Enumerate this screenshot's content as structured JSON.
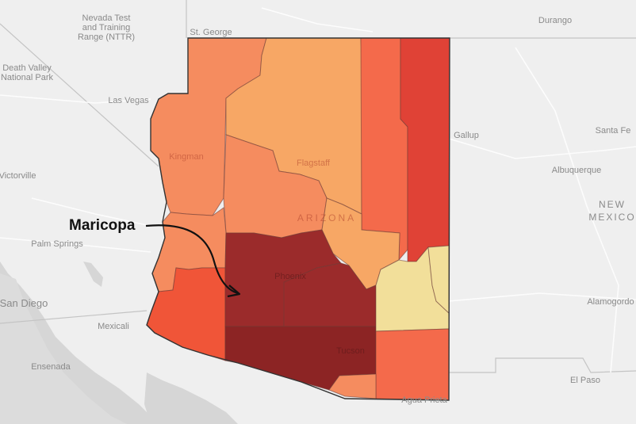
{
  "colors": {
    "water": "#d6d6d6",
    "land": "#efefef",
    "road": "#ffffff",
    "border": "#c9c9c9",
    "scale": [
      "#f2df9a",
      "#f7a765",
      "#f58c5f",
      "#f46a4b",
      "#f05538",
      "#e04236",
      "#9b2b2b",
      "#8c2424"
    ]
  },
  "basemap_labels": {
    "nevada_test_range": [
      "Nevada Test",
      "and Training",
      "Range (NTTR)"
    ],
    "death_valley": [
      "Death Valley",
      "National Park"
    ],
    "st_george": "St. George",
    "durango": "Durango",
    "las_vegas": "Las Vegas",
    "gallup": "Gallup",
    "santa_fe": "Santa Fe",
    "albuquerque": "Albuquerque",
    "new_mexico": [
      "NEW",
      "MEXICO"
    ],
    "victorville": "Victorville",
    "palm_springs": "Palm Springs",
    "san_diego": "San Diego",
    "mexicali": "Mexicali",
    "alamogordo": "Alamogordo",
    "ensenada": "Ensenada",
    "el_paso": "El Paso",
    "agua_prieta": "Agua Prieta"
  },
  "overlay_labels": {
    "kingman": "Kingman",
    "flagstaff": "Flagstaff",
    "arizona": "ARIZONA",
    "phoenix": "Phoenix",
    "tucson": "Tucson"
  },
  "annotation": {
    "label": "Maricopa"
  },
  "counties": [
    {
      "id": "mohave-north",
      "level": 2
    },
    {
      "id": "mohave",
      "level": 2
    },
    {
      "id": "coconino",
      "level": 1
    },
    {
      "id": "navajo",
      "level": 3
    },
    {
      "id": "apache",
      "level": 5
    },
    {
      "id": "yavapai",
      "level": 2
    },
    {
      "id": "la-paz",
      "level": 2
    },
    {
      "id": "yuma",
      "level": 4
    },
    {
      "id": "maricopa",
      "level": 6
    },
    {
      "id": "gila",
      "level": 1
    },
    {
      "id": "pinal",
      "level": 6
    },
    {
      "id": "pima",
      "level": 7
    },
    {
      "id": "graham",
      "level": 0
    },
    {
      "id": "greenlee",
      "level": 0
    },
    {
      "id": "cochise",
      "level": 3
    },
    {
      "id": "santa-cruz",
      "level": 2
    }
  ]
}
